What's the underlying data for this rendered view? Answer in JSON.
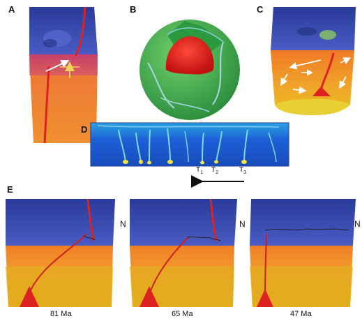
{
  "panels": {
    "a": {
      "label": "A"
    },
    "b": {
      "label": "B"
    },
    "c": {
      "label": "C"
    },
    "d": {
      "label": "D",
      "markers": [
        {
          "letter": "T",
          "sub": "1"
        },
        {
          "letter": "T",
          "sub": "2"
        },
        {
          "letter": "T",
          "sub": "3"
        }
      ]
    },
    "e": {
      "label": "E",
      "blocks": [
        {
          "age": "81 Ma",
          "north": "N"
        },
        {
          "age": "65 Ma",
          "north": "N"
        },
        {
          "age": "47 Ma",
          "north": "N"
        }
      ]
    }
  },
  "colors": {
    "surface": "#3646a8",
    "mantle_upper": "#f08a2a",
    "mantle_lower": "#e8b020",
    "plume": "#dd2222",
    "core": "#ee1c1c",
    "model_bg": "#1c5fd6",
    "sphere_green": "#3faa4a"
  }
}
